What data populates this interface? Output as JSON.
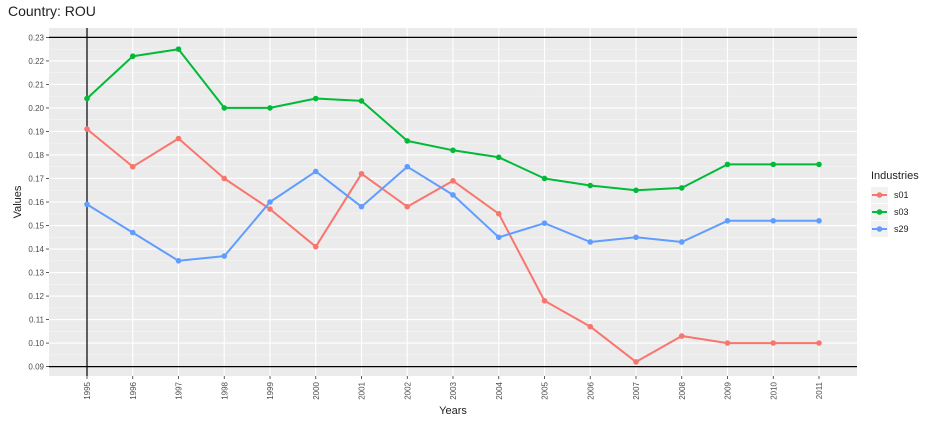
{
  "chart_data": {
    "type": "line",
    "title": "Country: ROU",
    "xlabel": "Years",
    "ylabel": "Values",
    "legend_title": "Industries",
    "legend_position": "right",
    "grid": true,
    "x": [
      "1995",
      "1996",
      "1997",
      "1998",
      "1999",
      "2000",
      "2001",
      "2002",
      "2003",
      "2004",
      "2005",
      "2006",
      "2007",
      "2008",
      "2009",
      "2010",
      "2011"
    ],
    "ylim": [
      0.086,
      0.234
    ],
    "y_ticks": [
      0.09,
      0.1,
      0.11,
      0.12,
      0.13,
      0.14,
      0.15,
      0.16,
      0.17,
      0.18,
      0.19,
      0.2,
      0.21,
      0.22,
      0.23
    ],
    "y_tick_labels": [
      "0.09",
      "0.10",
      "0.11",
      "0.12",
      "0.13",
      "0.14",
      "0.15",
      "0.16",
      "0.17",
      "0.18",
      "0.19",
      "0.20",
      "0.21",
      "0.22",
      "0.23"
    ],
    "reference_lines": {
      "vertical_x": "1995",
      "horizontal_y": [
        0.09,
        0.23
      ]
    },
    "series": [
      {
        "name": "s01",
        "color": "#F8766D",
        "values": [
          0.191,
          0.175,
          0.187,
          0.17,
          0.157,
          0.141,
          0.172,
          0.158,
          0.169,
          0.155,
          0.118,
          0.107,
          0.092,
          0.103,
          0.1,
          0.1,
          0.1
        ]
      },
      {
        "name": "s03",
        "color": "#00BA38",
        "values": [
          0.204,
          0.222,
          0.225,
          0.2,
          0.2,
          0.204,
          0.203,
          0.186,
          0.182,
          0.179,
          0.17,
          0.167,
          0.165,
          0.166,
          0.176,
          0.176,
          0.176
        ]
      },
      {
        "name": "s29",
        "color": "#619CFF",
        "values": [
          0.159,
          0.147,
          0.135,
          0.137,
          0.16,
          0.173,
          0.158,
          0.175,
          0.163,
          0.145,
          0.151,
          0.143,
          0.145,
          0.143,
          0.152,
          0.152,
          0.152
        ]
      }
    ]
  }
}
